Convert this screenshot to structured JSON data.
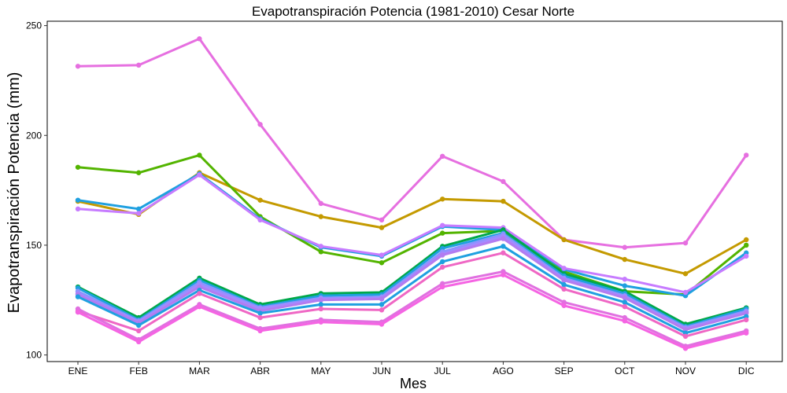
{
  "chart_data": {
    "type": "line",
    "title": "Evapotranspiración Potencia (1981-2010)  Cesar Norte",
    "xlabel": "Mes",
    "ylabel": "Evapotranspiración Potencia  (mm)",
    "categories": [
      "ENE",
      "FEB",
      "MAR",
      "ABR",
      "MAY",
      "JUN",
      "JUL",
      "AGO",
      "SEP",
      "OCT",
      "NOV",
      "DIC"
    ],
    "yticks": [
      100,
      150,
      200,
      250
    ],
    "ylim": [
      97,
      252
    ],
    "grid": false,
    "legend": "none",
    "series": [
      {
        "color": "#e66fe0",
        "values": [
          231.5,
          232,
          244,
          205,
          169,
          161.5,
          190.5,
          179,
          152.5,
          149,
          151,
          191
        ]
      },
      {
        "color": "#c49a00",
        "values": [
          170,
          164,
          183,
          170.5,
          163,
          158,
          171,
          170,
          152.5,
          143.5,
          137,
          152.5
        ]
      },
      {
        "color": "#53b400",
        "values": [
          185.5,
          183,
          191,
          163,
          147,
          142,
          155.5,
          156.5,
          138,
          129,
          127.5,
          150
        ]
      },
      {
        "color": "#1fa0e0",
        "values": [
          170.5,
          166.5,
          182.5,
          162,
          149,
          145,
          158.5,
          157,
          139,
          131.5,
          127,
          146.5
        ]
      },
      {
        "color": "#c77cff",
        "values": [
          166.5,
          164.5,
          182,
          161.5,
          149.5,
          145.5,
          159,
          158,
          139.5,
          134.5,
          128.5,
          145
        ]
      },
      {
        "color": "#00a84a",
        "values": [
          131,
          117,
          135,
          123,
          128,
          128.5,
          149.5,
          157,
          137,
          129,
          114,
          121.5
        ]
      },
      {
        "color": "#1fa0e0",
        "values": [
          130.5,
          116,
          134,
          122,
          127,
          127.5,
          148.5,
          155.5,
          136,
          128,
          113,
          121
        ]
      },
      {
        "color": "#8b93ff",
        "values": [
          129,
          115.5,
          133,
          121.5,
          126,
          126.5,
          147,
          155,
          135,
          127,
          112.5,
          120
        ]
      },
      {
        "color": "#a58aff",
        "values": [
          128,
          115,
          132,
          121,
          125.5,
          126,
          146,
          154,
          134.5,
          126.5,
          112,
          119.5
        ]
      },
      {
        "color": "#b37cf0",
        "values": [
          127.5,
          114.5,
          131,
          120,
          125,
          125.5,
          145.5,
          153,
          134,
          126,
          111.5,
          119
        ]
      },
      {
        "color": "#1fa0e0",
        "values": [
          126.5,
          113.5,
          129.5,
          119,
          123,
          123,
          142.5,
          149.5,
          132,
          124,
          110,
          117.5
        ]
      },
      {
        "color": "#ef67c4",
        "values": [
          120,
          111,
          128,
          117,
          121,
          120.5,
          140,
          146.5,
          130,
          122,
          108.5,
          116
        ]
      },
      {
        "color": "#e070e0",
        "values": [
          121,
          107,
          123,
          112,
          116,
          115,
          132.5,
          138,
          124,
          117,
          104,
          111
        ]
      },
      {
        "color": "#f564e3",
        "values": [
          119.5,
          106,
          122,
          111,
          115,
          114,
          131,
          136.5,
          122.5,
          115.5,
          103,
          110
        ]
      }
    ]
  }
}
